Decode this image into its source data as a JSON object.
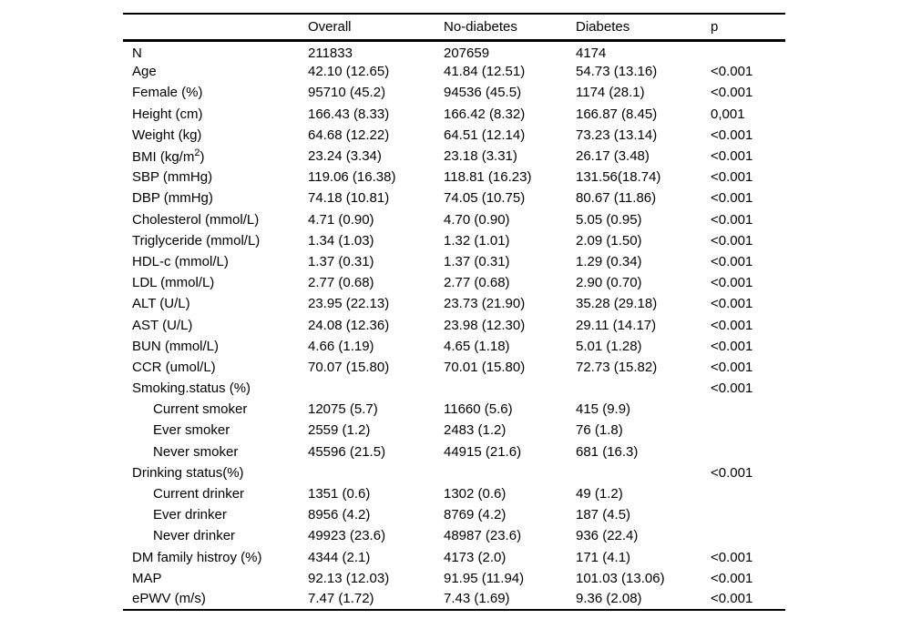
{
  "page": {
    "background": "#ffffff",
    "text_color": "#000000"
  },
  "table": {
    "columns": [
      "",
      "Overall",
      "No-diabetes",
      "Diabetes",
      "p"
    ],
    "rows": [
      {
        "label": "N",
        "overall": "211833",
        "no_diabetes": "207659",
        "diabetes": "4174",
        "p": ""
      },
      {
        "label": "Age",
        "overall": "42.10 (12.65)",
        "no_diabetes": "41.84 (12.51)",
        "diabetes": "54.73 (13.16)",
        "p": "<0.001"
      },
      {
        "label": "Female (%)",
        "overall": "95710 (45.2)",
        "no_diabetes": "94536 (45.5)",
        "diabetes": "1174 (28.1)",
        "p": "<0.001"
      },
      {
        "label": "Height (cm)",
        "overall": "166.43 (8.33)",
        "no_diabetes": "166.42 (8.32)",
        "diabetes": "166.87 (8.45)",
        "p": "0,001"
      },
      {
        "label": "Weight (kg)",
        "overall": "64.68 (12.22)",
        "no_diabetes": "64.51 (12.14)",
        "diabetes": "73.23 (13.14)",
        "p": "<0.001"
      },
      {
        "label": "BMI (kg/m²)",
        "overall": "23.24 (3.34)",
        "no_diabetes": "23.18 (3.31)",
        "diabetes": "26.17 (3.48)",
        "p": "<0.001"
      },
      {
        "label": "SBP (mmHg)",
        "overall": "119.06 (16.38)",
        "no_diabetes": "118.81 (16.23)",
        "diabetes": "131.56(18.74)",
        "p": "<0.001"
      },
      {
        "label": "DBP (mmHg)",
        "overall": "74.18 (10.81)",
        "no_diabetes": "74.05 (10.75)",
        "diabetes": "80.67 (11.86)",
        "p": "<0.001"
      },
      {
        "label": "Cholesterol (mmol/L)",
        "overall": "4.71 (0.90)",
        "no_diabetes": "4.70 (0.90)",
        "diabetes": "5.05 (0.95)",
        "p": "<0.001"
      },
      {
        "label": "Triglyceride (mmol/L)",
        "overall": "1.34 (1.03)",
        "no_diabetes": "1.32 (1.01)",
        "diabetes": "2.09 (1.50)",
        "p": "<0.001"
      },
      {
        "label": "HDL-c (mmol/L)",
        "overall": "1.37 (0.31)",
        "no_diabetes": "1.37 (0.31)",
        "diabetes": "1.29 (0.34)",
        "p": "<0.001"
      },
      {
        "label": "LDL (mmol/L)",
        "overall": "2.77 (0.68)",
        "no_diabetes": "2.77 (0.68)",
        "diabetes": "2.90 (0.70)",
        "p": "<0.001"
      },
      {
        "label": "ALT (U/L)",
        "overall": "23.95 (22.13)",
        "no_diabetes": "23.73 (21.90)",
        "diabetes": "35.28 (29.18)",
        "p": "<0.001"
      },
      {
        "label": "AST (U/L)",
        "overall": "24.08 (12.36)",
        "no_diabetes": "23.98 (12.30)",
        "diabetes": "29.11 (14.17)",
        "p": "<0.001"
      },
      {
        "label": "BUN (mmol/L)",
        "overall": "4.66 (1.19)",
        "no_diabetes": "4.65 (1.18)",
        "diabetes": "5.01 (1.28)",
        "p": "<0.001"
      },
      {
        "label": "CCR (umol/L)",
        "overall": "70.07 (15.80)",
        "no_diabetes": "70.01 (15.80)",
        "diabetes": "72.73 (15.82)",
        "p": "<0.001"
      },
      {
        "label": "Smoking.status (%)",
        "overall": "",
        "no_diabetes": "",
        "diabetes": "",
        "p": "<0.001"
      },
      {
        "label": "Current smoker",
        "indent": true,
        "overall": "12075 (5.7)",
        "no_diabetes": "11660 (5.6)",
        "diabetes": "415 (9.9)",
        "p": ""
      },
      {
        "label": "Ever smoker",
        "indent": true,
        "overall": "2559 (1.2)",
        "no_diabetes": "2483 (1.2)",
        "diabetes": "76 (1.8)",
        "p": ""
      },
      {
        "label": "Never smoker",
        "indent": true,
        "overall": "45596 (21.5)",
        "no_diabetes": "44915 (21.6)",
        "diabetes": "681 (16.3)",
        "p": ""
      },
      {
        "label": "Drinking status(%)",
        "overall": "",
        "no_diabetes": "",
        "diabetes": "",
        "p": "<0.001"
      },
      {
        "label": "Current drinker",
        "indent": true,
        "overall": "1351 (0.6)",
        "no_diabetes": "1302 (0.6)",
        "diabetes": "49 (1.2)",
        "p": ""
      },
      {
        "label": "Ever drinker",
        "indent": true,
        "overall": "8956 (4.2)",
        "no_diabetes": "8769 (4.2)",
        "diabetes": "187 (4.5)",
        "p": ""
      },
      {
        "label": "Never drinker",
        "indent": true,
        "overall": "49923 (23.6)",
        "no_diabetes": "48987 (23.6)",
        "diabetes": "936 (22.4)",
        "p": ""
      },
      {
        "label": "DM family histroy (%)",
        "overall": "4344 (2.1)",
        "no_diabetes": "4173 (2.0)",
        "diabetes": "171 (4.1)",
        "p": "<0.001"
      },
      {
        "label": "MAP",
        "overall": "92.13 (12.03)",
        "no_diabetes": "91.95 (11.94)",
        "diabetes": "101.03 (13.06)",
        "p": "<0.001"
      },
      {
        "label": "ePWV (m/s)",
        "overall": "7.47 (1.72)",
        "no_diabetes": "7.43 (1.69)",
        "diabetes": "9.36 (2.08)",
        "p": "<0.001"
      }
    ]
  }
}
